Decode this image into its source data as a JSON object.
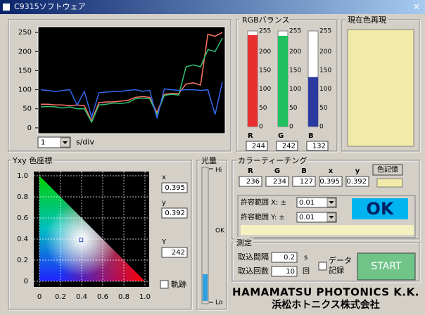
{
  "window": {
    "title": "C9315ソフトウェア",
    "close": "×"
  },
  "graph": {
    "ylim": [
      -15,
      265
    ],
    "yticks": [
      0,
      50,
      100,
      150,
      200,
      250
    ],
    "series": [
      {
        "color": "#ff7766",
        "values": [
          62,
          62,
          60,
          60,
          58,
          60,
          58,
          18,
          66,
          68,
          68,
          70,
          72,
          80,
          82,
          80,
          40,
          88,
          90,
          90,
          115,
          118,
          112,
          245,
          240,
          250
        ]
      },
      {
        "color": "#30c070",
        "values": [
          55,
          56,
          55,
          52,
          55,
          50,
          50,
          15,
          60,
          62,
          65,
          64,
          66,
          76,
          78,
          76,
          35,
          85,
          88,
          86,
          160,
          165,
          160,
          205,
          200,
          235
        ]
      },
      {
        "color": "#3366ee",
        "values": [
          100,
          98,
          95,
          98,
          100,
          60,
          95,
          28,
          92,
          94,
          95,
          96,
          98,
          100,
          96,
          98,
          25,
          102,
          100,
          98,
          100,
          100,
          98,
          100,
          35,
          120
        ]
      }
    ],
    "time_div": 1,
    "unit": "s/div"
  },
  "rgb": {
    "title": "RGBバランス",
    "ylim": [
      0,
      255
    ],
    "ticks": [
      0,
      50,
      100,
      150,
      200,
      255
    ],
    "channels": [
      {
        "name": "R",
        "color": "#e83030",
        "value": 244
      },
      {
        "name": "G",
        "color": "#20c060",
        "value": 242
      },
      {
        "name": "B",
        "color": "#2a3aa0",
        "value": 132
      }
    ]
  },
  "current_color": {
    "title": "現在色再現",
    "color": "#f2eaa8"
  },
  "yxy": {
    "title": "Yxy 色座標",
    "xlim": [
      0,
      1
    ],
    "ylim": [
      0,
      1
    ],
    "xticks": [
      0,
      0.2,
      0.4,
      0.6,
      0.8,
      {
        "value": 1,
        "label": "1.0"
      }
    ],
    "yticks": [
      0,
      0.2,
      0.4,
      0.6,
      0.8,
      {
        "value": 1,
        "label": "1.0"
      }
    ],
    "x": {
      "label": "x",
      "value": 0.395
    },
    "y": {
      "label": "y",
      "value": 0.392
    },
    "Y": {
      "label": "Y",
      "value": 242
    },
    "trace": "軌跡"
  },
  "light": {
    "title": "光量",
    "hi": "Hi",
    "ok": "OK",
    "lo": "Lo"
  },
  "teaching": {
    "title": "カラーティーチング",
    "headers": [
      "R",
      "G",
      "B",
      "x",
      "y"
    ],
    "values": [
      236,
      234,
      127,
      0.395,
      0.392
    ],
    "memory_button": "色記憶",
    "tol_x": {
      "label": "許容範囲 X: ±",
      "value": 0.01
    },
    "tol_y": {
      "label": "許容範囲 Y: ±",
      "value": 0.01
    },
    "result": "OK"
  },
  "measure": {
    "title": "測定",
    "interval": {
      "label": "取込間隔",
      "value": 0.2,
      "unit": "s"
    },
    "count": {
      "label": "取込回数",
      "value": 10,
      "unit": "回"
    },
    "record": [
      "データ",
      "記録"
    ],
    "start": "START"
  },
  "logo": {
    "en": "HAMAMATSU PHOTONICS K.K.",
    "jp": "浜松ホトニクス株式会社"
  }
}
